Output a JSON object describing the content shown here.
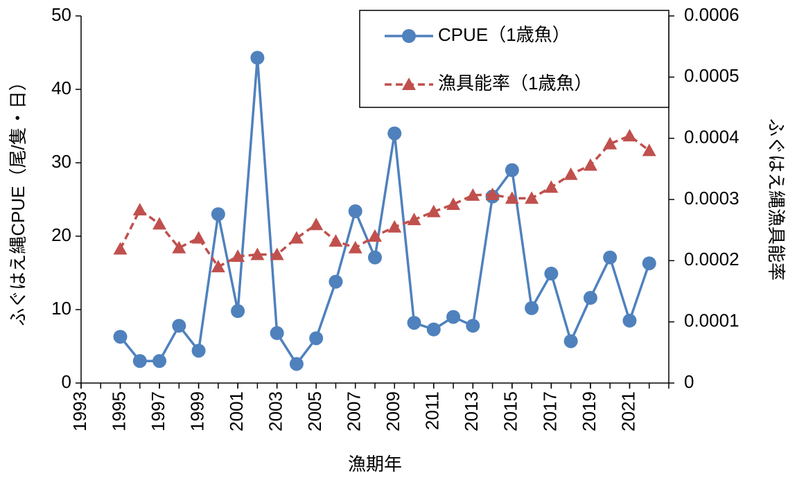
{
  "chart_data": {
    "type": "line",
    "x_label": "漁期年",
    "y_label": "ふぐはえ縄CPUE（尾/隻・日）",
    "y2_label": "ふぐはえ縄漁具能率",
    "x": [
      1995,
      1996,
      1997,
      1998,
      1999,
      2000,
      2001,
      2002,
      2003,
      2004,
      2005,
      2006,
      2007,
      2008,
      2009,
      2010,
      2011,
      2012,
      2013,
      2014,
      2015,
      2016,
      2017,
      2018,
      2019,
      2020,
      2021,
      2022
    ],
    "series": [
      {
        "name": "CPUE（1歳魚）",
        "color": "#4f81bd",
        "marker": "circle",
        "dash": false,
        "values": [
          6.3,
          3.0,
          3.0,
          7.8,
          4.4,
          23.0,
          9.8,
          44.3,
          6.8,
          2.6,
          6.1,
          13.8,
          23.4,
          17.1,
          34.0,
          8.2,
          7.3,
          9.0,
          7.8,
          25.4,
          29.0,
          10.2,
          14.9,
          5.7,
          11.6,
          17.1,
          8.5,
          16.3
        ]
      },
      {
        "name": "漁具能率（1歳魚）",
        "color": "#c0504d",
        "marker": "triangle",
        "dash": true,
        "axis": "y2",
        "values": [
          0.000219,
          0.000283,
          0.00026,
          0.000221,
          0.000237,
          0.00019,
          0.000207,
          0.00021,
          0.00021,
          0.000237,
          0.000259,
          0.000232,
          0.000221,
          0.00024,
          0.000255,
          0.000267,
          0.00028,
          0.000292,
          0.000307,
          0.000308,
          0.000302,
          0.000302,
          0.00032,
          0.000341,
          0.000356,
          0.000391,
          0.000404,
          0.00038
        ]
      }
    ],
    "xlim": [
      1993,
      2023
    ],
    "xticks": [
      1993,
      1995,
      1997,
      1999,
      2001,
      2003,
      2005,
      2007,
      2009,
      2011,
      2013,
      2015,
      2017,
      2019,
      2021
    ],
    "xticks_minor": [
      1993,
      1994,
      1995,
      1996,
      1997,
      1998,
      1999,
      2000,
      2001,
      2002,
      2003,
      2004,
      2005,
      2006,
      2007,
      2008,
      2009,
      2010,
      2011,
      2012,
      2013,
      2014,
      2015,
      2016,
      2017,
      2018,
      2019,
      2020,
      2021,
      2022,
      2023
    ],
    "ylim": [
      0,
      50
    ],
    "yticks": [
      0,
      10,
      20,
      30,
      40,
      50
    ],
    "y2lim": [
      0,
      0.0006
    ],
    "y2ticks": [
      0,
      0.0001,
      0.0002,
      0.0003,
      0.0004,
      0.0005,
      0.0006
    ],
    "legend": "top-right",
    "grid": false
  }
}
